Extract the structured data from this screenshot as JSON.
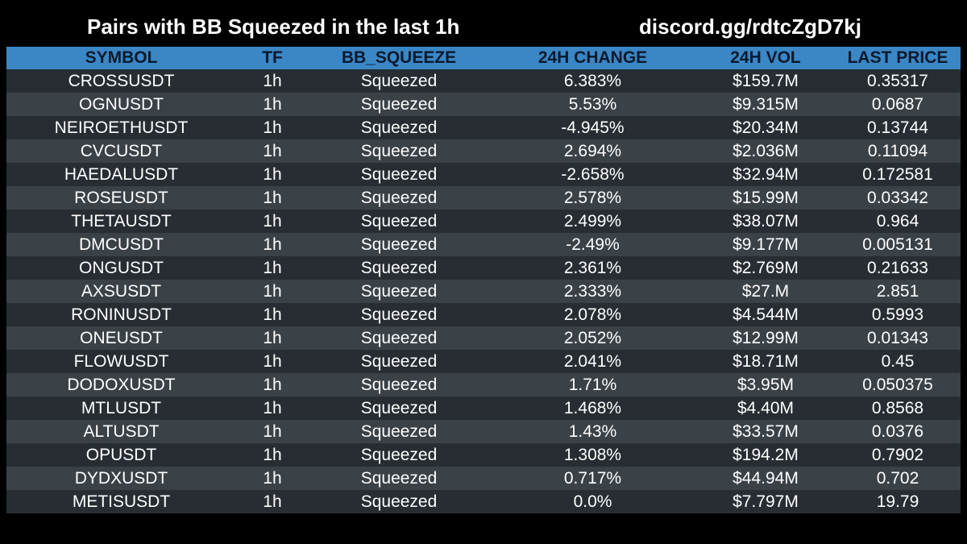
{
  "header": {
    "title": "Pairs with BB Squeezed in the last 1h",
    "link": "discord.gg/rdtcZgD7kj"
  },
  "table": {
    "columns": [
      "SYMBOL",
      "TF",
      "BB_SQUEEZE",
      "24H CHANGE",
      "24H VOL",
      "LAST PRICE"
    ],
    "rows": [
      [
        "CROSSUSDT",
        "1h",
        "Squeezed",
        "6.383%",
        "$159.7M",
        "0.35317"
      ],
      [
        "OGNUSDT",
        "1h",
        "Squeezed",
        "5.53%",
        "$9.315M",
        "0.0687"
      ],
      [
        "NEIROETHUSDT",
        "1h",
        "Squeezed",
        "-4.945%",
        "$20.34M",
        "0.13744"
      ],
      [
        "CVCUSDT",
        "1h",
        "Squeezed",
        "2.694%",
        "$2.036M",
        "0.11094"
      ],
      [
        "HAEDALUSDT",
        "1h",
        "Squeezed",
        "-2.658%",
        "$32.94M",
        "0.172581"
      ],
      [
        "ROSEUSDT",
        "1h",
        "Squeezed",
        "2.578%",
        "$15.99M",
        "0.03342"
      ],
      [
        "THETAUSDT",
        "1h",
        "Squeezed",
        "2.499%",
        "$38.07M",
        "0.964"
      ],
      [
        "DMCUSDT",
        "1h",
        "Squeezed",
        "-2.49%",
        "$9.177M",
        "0.005131"
      ],
      [
        "ONGUSDT",
        "1h",
        "Squeezed",
        "2.361%",
        "$2.769M",
        "0.21633"
      ],
      [
        "AXSUSDT",
        "1h",
        "Squeezed",
        "2.333%",
        "$27.M",
        "2.851"
      ],
      [
        "RONINUSDT",
        "1h",
        "Squeezed",
        "2.078%",
        "$4.544M",
        "0.5993"
      ],
      [
        "ONEUSDT",
        "1h",
        "Squeezed",
        "2.052%",
        "$12.99M",
        "0.01343"
      ],
      [
        "FLOWUSDT",
        "1h",
        "Squeezed",
        "2.041%",
        "$18.71M",
        "0.45"
      ],
      [
        "DODOXUSDT",
        "1h",
        "Squeezed",
        "1.71%",
        "$3.95M",
        "0.050375"
      ],
      [
        "MTLUSDT",
        "1h",
        "Squeezed",
        "1.468%",
        "$4.40M",
        "0.8568"
      ],
      [
        "ALTUSDT",
        "1h",
        "Squeezed",
        "1.43%",
        "$33.57M",
        "0.0376"
      ],
      [
        "OPUSDT",
        "1h",
        "Squeezed",
        "1.308%",
        "$194.2M",
        "0.7902"
      ],
      [
        "DYDXUSDT",
        "1h",
        "Squeezed",
        "0.717%",
        "$44.94M",
        "0.702"
      ],
      [
        "METISUSDT",
        "1h",
        "Squeezed",
        "0.0%",
        "$7.797M",
        "19.79"
      ]
    ]
  },
  "colors": {
    "background": "#000000",
    "header_bg": "#3b86c4",
    "header_text": "#0a1a2e",
    "row_odd": "#272d33",
    "row_even": "#3a4147",
    "text": "#ffffff"
  }
}
